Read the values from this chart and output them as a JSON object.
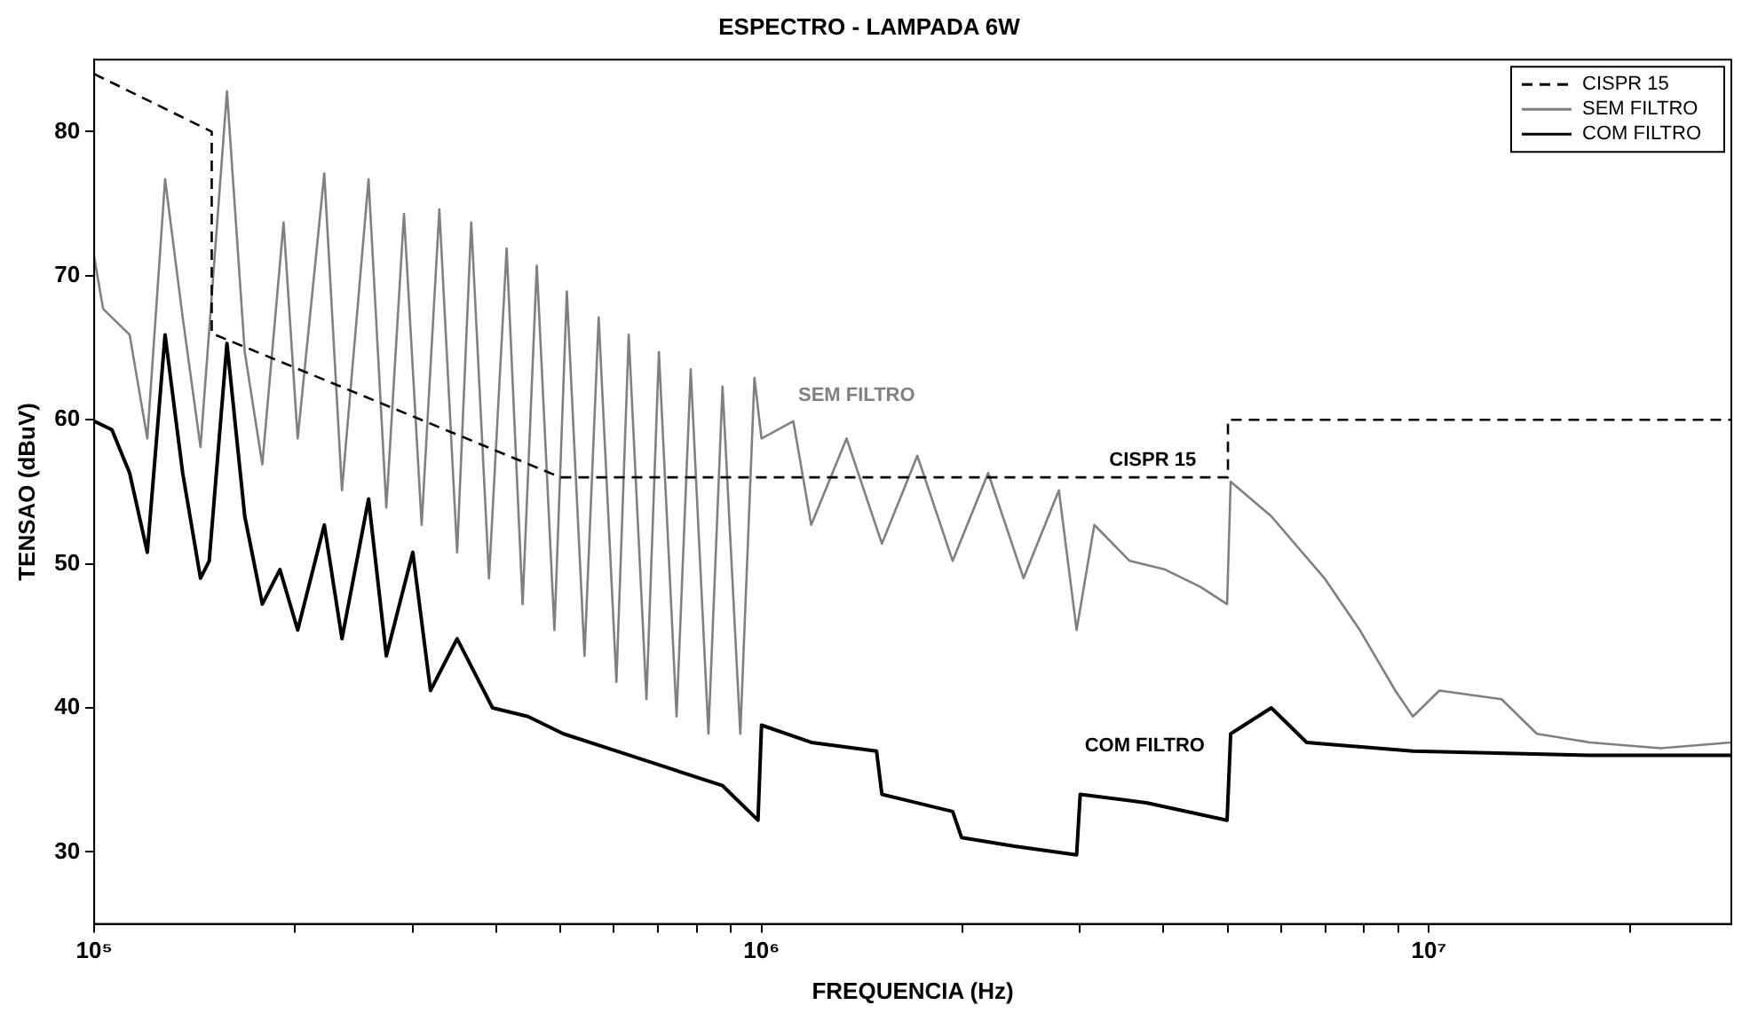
{
  "chart_data": {
    "type": "line",
    "title": "ESPECTRO - LAMPADA 6W",
    "xlabel": "FREQUENCIA (Hz)",
    "ylabel": "TENSAO (dBuV)",
    "log": "x",
    "grid": false,
    "legend": "top right",
    "marker": "none",
    "xlim": [
      100000,
      28400000
    ],
    "ylim": [
      25,
      85
    ],
    "xticks": [
      {
        "value": 100000,
        "label": "10⁵"
      },
      {
        "value": 200000,
        "label": null
      },
      {
        "value": 300000,
        "label": null
      },
      {
        "value": 400000,
        "label": null
      },
      {
        "value": 500000,
        "label": null
      },
      {
        "value": 600000,
        "label": null
      },
      {
        "value": 700000,
        "label": null
      },
      {
        "value": 800000,
        "label": null
      },
      {
        "value": 900000,
        "label": null
      },
      {
        "value": 1000000,
        "label": "10⁶"
      },
      {
        "value": 2000000,
        "label": null
      },
      {
        "value": 3000000,
        "label": null
      },
      {
        "value": 4000000,
        "label": null
      },
      {
        "value": 5000000,
        "label": null
      },
      {
        "value": 6000000,
        "label": null
      },
      {
        "value": 7000000,
        "label": null
      },
      {
        "value": 8000000,
        "label": null
      },
      {
        "value": 9000000,
        "label": null
      },
      {
        "value": 10000000,
        "label": "10⁷"
      },
      {
        "value": 20000000,
        "label": null
      }
    ],
    "yticks": [
      30,
      40,
      50,
      60,
      70,
      80
    ],
    "annotations": [
      "SEM FILTRO",
      "CISPR 15",
      "COM FILTRO"
    ],
    "series": [
      {
        "name": "CISPR 15",
        "color": "#000000",
        "line_style": "dashed",
        "x": [
          100000,
          150000,
          150000,
          500000,
          5000000,
          5000000,
          28400000
        ],
        "values": [
          84,
          80,
          66,
          56,
          56,
          60,
          60
        ]
      },
      {
        "name": "SEM FILTRO",
        "color": "#808080",
        "x": [
          100000,
          103100,
          113000,
          120100,
          127700,
          135700,
          144300,
          158100,
          168100,
          178600,
          192200,
          201800,
          221200,
          235100,
          257700,
          274000,
          291200,
          309500,
          329000,
          349800,
          367300,
          390500,
          415000,
          438500,
          460500,
          489400,
          510800,
          542900,
          570100,
          606100,
          632400,
          672300,
          701800,
          745900,
          783200,
          832600,
          874100,
          929400,
          975900,
          1000000,
          1116000,
          1187000,
          1341000,
          1515000,
          1712000,
          1934000,
          2186000,
          2470000,
          2790000,
          2966000,
          3153000,
          3562000,
          4025000,
          4548000,
          4985000,
          5047000,
          5806000,
          6975000,
          7882000,
          8906000,
          9465000,
          10370000,
          12850000,
          14520000,
          17430000,
          22260000,
          28400000
        ],
        "values": [
          71.3,
          67.7,
          65.9,
          58.7,
          76.7,
          67.1,
          58.1,
          82.8,
          64.7,
          56.9,
          73.7,
          58.7,
          77.1,
          55.1,
          76.7,
          53.9,
          74.3,
          52.7,
          74.6,
          50.8,
          73.7,
          49,
          71.9,
          47.2,
          70.7,
          45.4,
          68.9,
          43.6,
          67.1,
          41.8,
          65.9,
          40.6,
          64.7,
          39.4,
          63.5,
          38.2,
          62.3,
          38.2,
          62.9,
          58.7,
          59.9,
          52.7,
          58.7,
          51.4,
          57.5,
          50.2,
          56.3,
          49,
          55.1,
          45.4,
          52.7,
          50.2,
          49.6,
          48.4,
          47.2,
          55.7,
          53.3,
          49,
          45.4,
          41.2,
          39.4,
          41.2,
          40.6,
          38.2,
          37.6,
          37.2,
          37.6
        ]
      },
      {
        "name": "COM FILTRO",
        "color": "#000000",
        "x": [
          100000,
          106300,
          113000,
          120100,
          127700,
          135700,
          144300,
          148700,
          158100,
          168100,
          178600,
          189800,
          201800,
          221200,
          235100,
          257700,
          274000,
          300200,
          319100,
          349800,
          395300,
          446700,
          504700,
          606100,
          727800,
          874100,
          987900,
          1000000,
          1187000,
          1487000,
          1515000,
          1934000,
          1994000,
          2395000,
          2966000,
          3003000,
          3786000,
          4985000,
          5047000,
          5806000,
          6561000,
          9465000,
          17430000,
          28400000
        ],
        "values": [
          59.9,
          59.3,
          56.3,
          50.8,
          65.9,
          56.3,
          49,
          50.2,
          65.3,
          53.3,
          47.2,
          49.6,
          45.4,
          52.7,
          44.8,
          54.5,
          43.6,
          50.8,
          41.2,
          44.8,
          40,
          39.4,
          38.2,
          37,
          35.8,
          34.6,
          32.2,
          38.8,
          37.6,
          37,
          34,
          32.8,
          31,
          30.4,
          29.8,
          34,
          33.4,
          32.2,
          38.2,
          40,
          37.6,
          37,
          36.7,
          36.7
        ]
      }
    ]
  }
}
